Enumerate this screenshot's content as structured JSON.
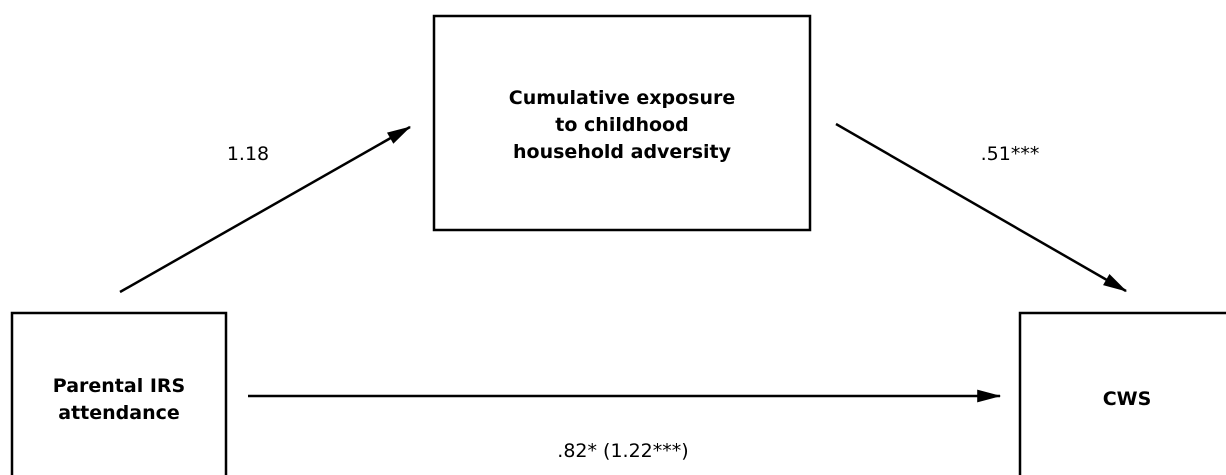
{
  "nodes": [
    {
      "label": [
        "Cumulative exposure",
        "to childhood",
        "household adversity"
      ]
    },
    {
      "label": [
        "Parental IRS",
        "attendance"
      ]
    },
    {
      "label": [
        "CWS"
      ]
    }
  ],
  "edges": [
    {
      "label": "1.18"
    },
    {
      "label": ".51***"
    },
    {
      "label": ".82* (1.22***)"
    }
  ]
}
